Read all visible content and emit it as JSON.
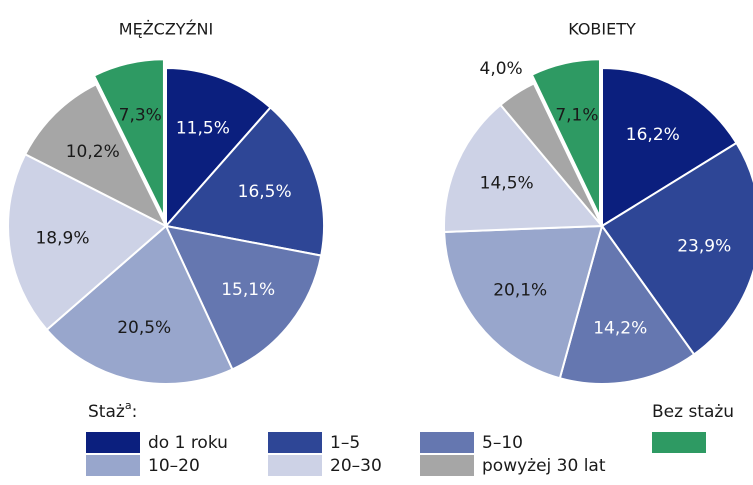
{
  "chart_data": [
    {
      "type": "pie",
      "title": "MĘŻCZYŹNI",
      "categories": [
        "do 1 roku",
        "1–5",
        "5–10",
        "10–20",
        "20–30",
        "powyżej 30 lat",
        "Bez stażu"
      ],
      "values": [
        11.5,
        16.5,
        15.1,
        20.5,
        18.9,
        10.2,
        7.3
      ],
      "value_labels": [
        "11,5%",
        "16,5%",
        "15,1%",
        "20,5%",
        "18,9%",
        "10,2%",
        "7,3%"
      ],
      "colors": [
        "#0b1f7e",
        "#2e4696",
        "#6577b0",
        "#98a6cc",
        "#cdd2e6",
        "#a6a6a6",
        "#2e9a63"
      ],
      "exploded": [
        6
      ]
    },
    {
      "type": "pie",
      "title": "KOBIETY",
      "categories": [
        "do 1 roku",
        "1–5",
        "5–10",
        "10–20",
        "20–30",
        "powyżej 30 lat",
        "Bez stażu"
      ],
      "values": [
        16.2,
        23.9,
        14.2,
        20.1,
        14.5,
        4.0,
        7.1
      ],
      "value_labels": [
        "16,2%",
        "23,9%",
        "14,2%",
        "20,1%",
        "14,5%",
        "4,0%",
        "7,1%"
      ],
      "colors": [
        "#0b1f7e",
        "#2e4696",
        "#6577b0",
        "#98a6cc",
        "#cdd2e6",
        "#a6a6a6",
        "#2e9a63"
      ],
      "exploded": [
        6
      ]
    }
  ],
  "legend": {
    "title": "Staż",
    "title_sup": "a",
    "title_suffix": ":",
    "group_title": "Bez stażu"
  }
}
